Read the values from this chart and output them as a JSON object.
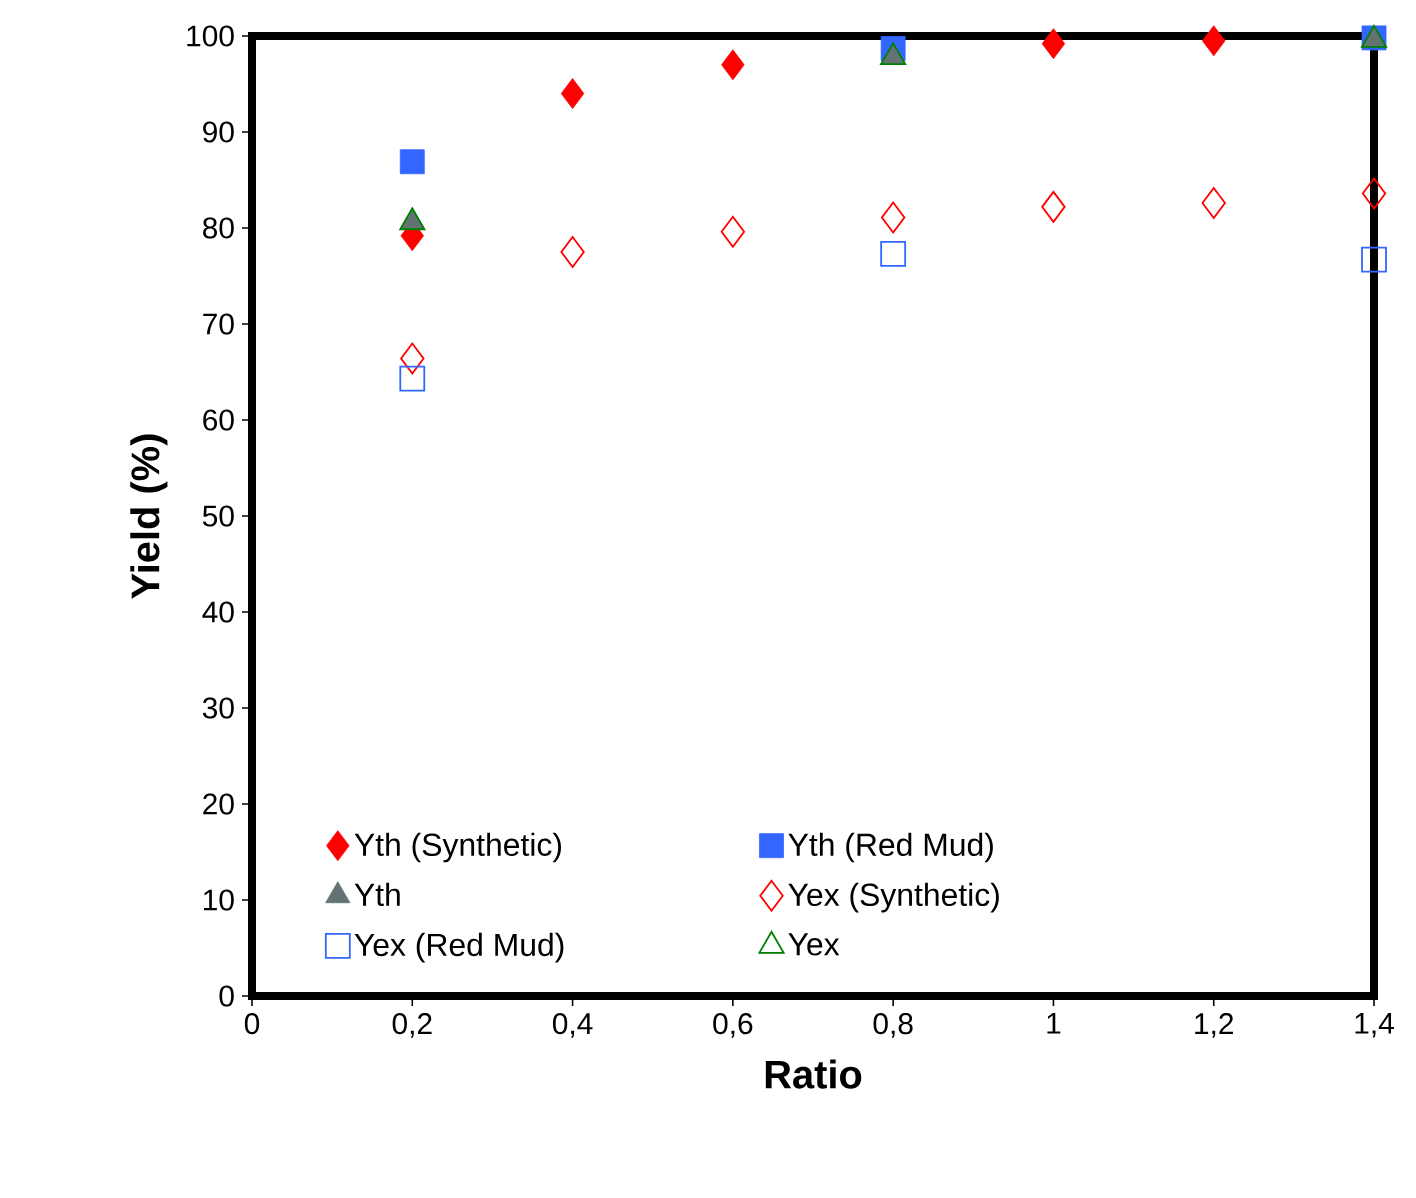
{
  "chart_data": {
    "type": "scatter",
    "xlabel": "Ratio",
    "ylabel": "Yield (%)",
    "x": [
      0.2,
      0.4,
      0.6,
      0.8,
      1.0,
      1.2,
      1.4
    ],
    "xlim": [
      0,
      1.4
    ],
    "ylim": [
      0,
      100
    ],
    "xticks": [
      0,
      {
        "value": 0.2,
        "label": "0,2"
      },
      {
        "value": 0.4,
        "label": "0,4"
      },
      {
        "value": 0.6,
        "label": "0,6"
      },
      {
        "value": 0.8,
        "label": "0,8"
      },
      1,
      {
        "value": 1.2,
        "label": "1,2"
      },
      {
        "value": 1.4,
        "label": "1,4"
      }
    ],
    "yticks": [
      0,
      10,
      20,
      30,
      40,
      50,
      60,
      70,
      80,
      90,
      100
    ],
    "grid": false,
    "legend": "bottom",
    "series": [
      {
        "name": "Yth (Synthetic)",
        "color": "#ff0000",
        "marker": "diamond",
        "values": [
          79.2,
          94.0,
          97.0,
          null,
          99.2,
          99.5,
          null
        ]
      },
      {
        "name": "Yth (Red Mud)",
        "color": "#3366ff",
        "marker": "square",
        "values": [
          86.9,
          null,
          null,
          98.7,
          null,
          null,
          99.8
        ]
      },
      {
        "name": "Yth",
        "color": "#637373",
        "marker": "triangle",
        "values": [
          80.6,
          null,
          null,
          97.8,
          null,
          null,
          99.6
        ]
      },
      {
        "name": "Yex (Synthetic)",
        "color": "#ff0000",
        "marker": "diamond",
        "values": [
          66.4,
          77.5,
          79.6,
          81.1,
          82.2,
          82.6,
          83.6
        ]
      },
      {
        "name": "Yex (Red Mud)",
        "color": "#3366ff",
        "marker": "square",
        "values": [
          64.3,
          null,
          null,
          77.3,
          null,
          null,
          76.7
        ]
      },
      {
        "name": "Yex",
        "color": "#008000",
        "marker": "triangle",
        "values": [
          80.6,
          null,
          null,
          97.8,
          null,
          null,
          99.6
        ]
      }
    ]
  }
}
